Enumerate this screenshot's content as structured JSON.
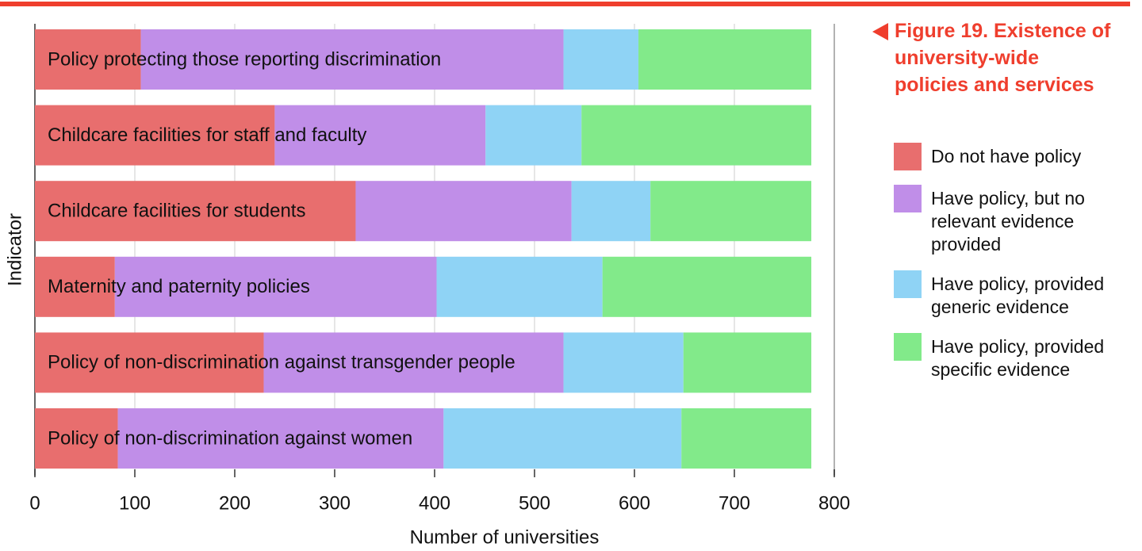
{
  "chart_data": {
    "type": "stacked_barh",
    "title": "Figure 19. Existence of university-wide policies and services",
    "xlabel": "Number of universities",
    "ylabel": "Indicator",
    "categories": [
      "Policy protecting those reporting discrimination",
      "Childcare facilities for staff and faculty",
      "Childcare facilities for students",
      "Maternity and paternity policies",
      "Policy of non-discrimination against transgender people",
      "Policy of non-discrimination against women"
    ],
    "series": [
      {
        "name": "Do not have policy",
        "color": "#e86e6e",
        "values": [
          106,
          240,
          321,
          80,
          229,
          83
        ]
      },
      {
        "name": "Have policy, but no relevant evidence provided",
        "color": "#c08ee8",
        "values": [
          423,
          211,
          216,
          322,
          300,
          326
        ]
      },
      {
        "name": "Have policy, provided generic evidence",
        "color": "#8fd3f5",
        "values": [
          75,
          96,
          79,
          166,
          120,
          238
        ]
      },
      {
        "name": "Have policy, provided specific evidence",
        "color": "#82ea8a",
        "values": [
          173,
          230,
          161,
          209,
          128,
          130
        ]
      }
    ],
    "xlim": [
      0,
      800
    ],
    "xticks": [
      0,
      100,
      200,
      300,
      400,
      500,
      600,
      700,
      800
    ],
    "grid": true,
    "legend": "right"
  }
}
